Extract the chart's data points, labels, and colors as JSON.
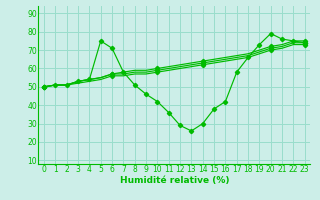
{
  "bg_color": "#cceee8",
  "grid_color": "#99ddcc",
  "line_color": "#00bb00",
  "xlabel": "Humidité relative (%)",
  "ylabel_ticks": [
    10,
    20,
    30,
    40,
    50,
    60,
    70,
    80,
    90
  ],
  "xlim": [
    -0.5,
    23.5
  ],
  "ylim": [
    8,
    94
  ],
  "main_line": [
    50,
    51,
    51,
    53,
    54,
    75,
    71,
    58,
    51,
    46,
    42,
    36,
    29,
    26,
    30,
    38,
    42,
    58,
    66,
    73,
    79,
    76,
    75,
    74
  ],
  "diag_lines": [
    [
      50,
      51,
      51,
      53,
      54,
      55,
      57,
      58,
      59,
      59,
      60,
      61,
      62,
      63,
      64,
      65,
      66,
      67,
      68,
      70,
      72,
      73,
      75,
      75
    ],
    [
      50,
      51,
      51,
      53,
      54,
      55,
      57,
      57,
      58,
      58,
      59,
      60,
      61,
      62,
      63,
      64,
      65,
      66,
      67,
      69,
      71,
      72,
      74,
      74
    ],
    [
      50,
      51,
      51,
      52,
      53,
      54,
      56,
      56,
      57,
      57,
      58,
      59,
      60,
      61,
      62,
      63,
      64,
      65,
      66,
      68,
      70,
      71,
      73,
      73
    ]
  ],
  "tick_fontsize": 5.5,
  "xlabel_fontsize": 6.5
}
